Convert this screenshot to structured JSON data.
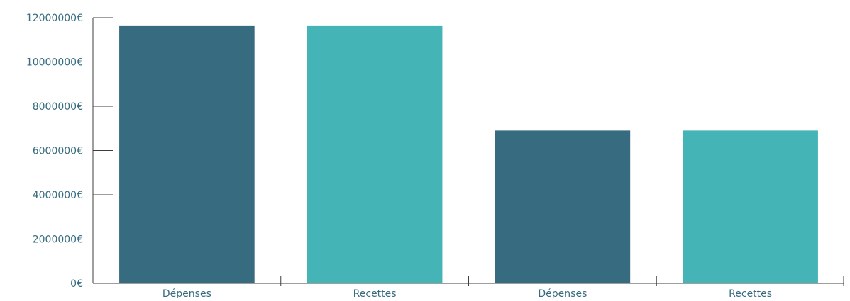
{
  "chart_data": {
    "type": "bar",
    "title": "",
    "xlabel": "",
    "ylabel": "",
    "categories": [
      "Dépenses",
      "Recettes",
      "Dépenses",
      "Recettes"
    ],
    "values": [
      11620000,
      11620000,
      6900000,
      6900000
    ],
    "bar_colors": [
      "#376c80",
      "#44b4b7",
      "#376c80",
      "#44b4b7"
    ],
    "ylim": [
      0,
      12000000
    ],
    "yticks": [
      0,
      2000000,
      4000000,
      6000000,
      8000000,
      10000000,
      12000000
    ],
    "ytick_labels": [
      "0€",
      "2000000€",
      "4000000€",
      "6000000€",
      "8000000€",
      "10000000€",
      "12000000€"
    ],
    "grid": false,
    "legend": "none"
  },
  "colors": {
    "axis": "#3d3d3d",
    "tick_text": "#376c80"
  }
}
